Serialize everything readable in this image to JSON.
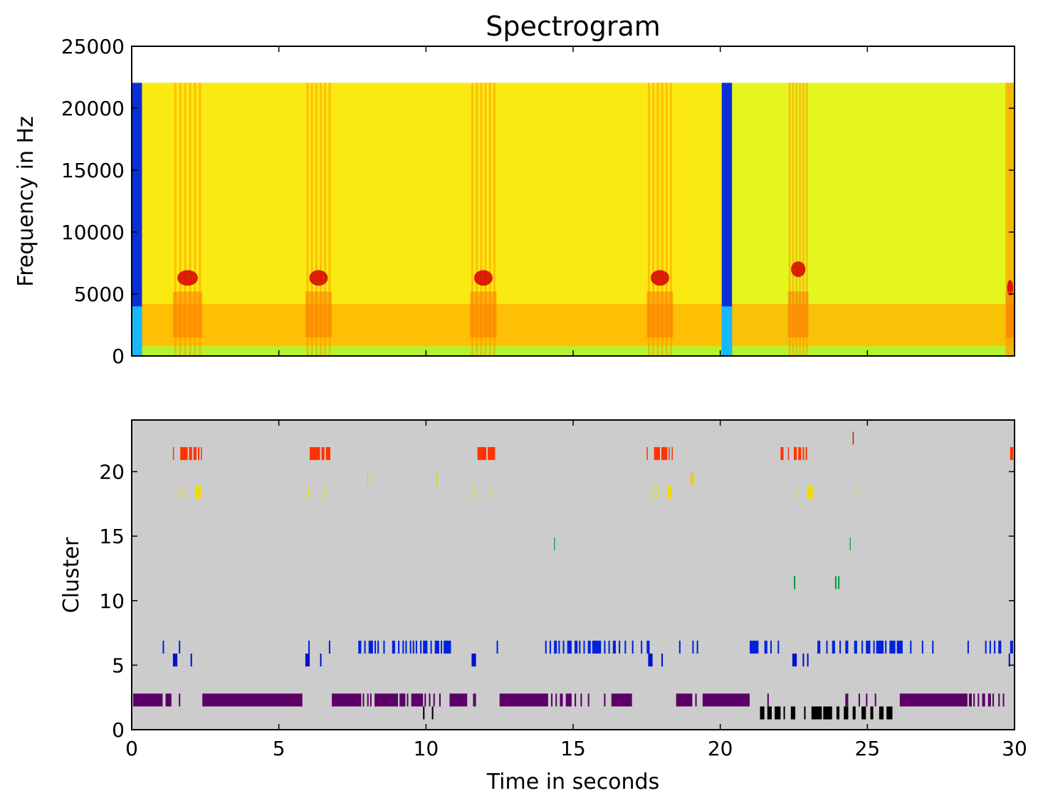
{
  "chart_data": [
    {
      "type": "heatmap",
      "title": "Spectrogram",
      "xlabel": "",
      "ylabel": "Frequency in Hz",
      "xlim": [
        0,
        30
      ],
      "ylim": [
        0,
        25000
      ],
      "xticks": [
        0,
        5,
        10,
        15,
        20,
        25,
        30
      ],
      "yticks": [
        0,
        5000,
        10000,
        15000,
        20000,
        25000
      ],
      "ytick_labels": [
        "0",
        "5000",
        "10000",
        "15000",
        "20000",
        "25000"
      ],
      "max_frequency": 22050,
      "colormap": "jet",
      "segment_boundaries": [
        0,
        20.05
      ],
      "segment_boundary_width": 0.35,
      "silence_color": "#0a2fd8",
      "edge_color": "#19c8ff",
      "background_colors": {
        "segment_1": "#fbea12",
        "segment_2": "#e4f61e",
        "low_band": "#b8f22c",
        "lower_noise": "#ffb000",
        "white_space": "#ffffff"
      },
      "calls": [
        {
          "start": 1.4,
          "end": 2.4,
          "peak_freq": 6300
        },
        {
          "start": 5.9,
          "end": 6.8,
          "peak_freq": 6300
        },
        {
          "start": 11.5,
          "end": 12.4,
          "peak_freq": 6300
        },
        {
          "start": 17.5,
          "end": 18.4,
          "peak_freq": 6300
        },
        {
          "start": 22.3,
          "end": 23.0,
          "peak_freq": 7000
        },
        {
          "start": 29.7,
          "end": 30.0,
          "peak_freq": 5500
        }
      ]
    },
    {
      "type": "scatter",
      "marker": "vertical-bar",
      "xlabel": "Time in seconds",
      "ylabel": "Cluster",
      "xlim": [
        0,
        30
      ],
      "ylim": [
        0,
        24
      ],
      "xticks": [
        0,
        5,
        10,
        15,
        20,
        25,
        30
      ],
      "xtick_labels": [
        "0",
        "5",
        "10",
        "15",
        "20",
        "25",
        "30"
      ],
      "yticks": [
        0,
        5,
        10,
        15,
        20
      ],
      "ytick_labels": [
        "0",
        "5",
        "10",
        "15",
        "20"
      ],
      "background": "#cccccc",
      "bar_half_height": 0.5,
      "series": [
        {
          "name": "cluster 1",
          "cluster": 1.3,
          "color": "#000000",
          "segments": [
            [
              9.9,
              9.95
            ],
            [
              10.2,
              10.25
            ],
            [
              21.35,
              21.5
            ],
            [
              21.6,
              21.75
            ],
            [
              21.85,
              22.05
            ],
            [
              22.15,
              22.2
            ],
            [
              22.4,
              22.55
            ],
            [
              22.85,
              22.9
            ],
            [
              23.1,
              23.45
            ],
            [
              23.5,
              23.8
            ],
            [
              23.95,
              24.05
            ],
            [
              24.2,
              24.35
            ],
            [
              24.5,
              24.6
            ],
            [
              24.8,
              24.95
            ],
            [
              25.1,
              25.2
            ],
            [
              25.4,
              25.55
            ],
            [
              25.65,
              25.85
            ]
          ]
        },
        {
          "name": "cluster 2",
          "cluster": 2.3,
          "color": "#5c0068",
          "segments": [
            [
              0.05,
              1.05
            ],
            [
              1.15,
              1.35
            ],
            [
              1.6,
              1.65
            ],
            [
              2.4,
              5.8
            ],
            [
              6.8,
              7.8
            ],
            [
              7.85,
              7.9
            ],
            [
              8.0,
              8.05
            ],
            [
              8.1,
              8.15
            ],
            [
              8.25,
              9.05
            ],
            [
              9.1,
              9.3
            ],
            [
              9.35,
              9.4
            ],
            [
              9.5,
              9.9
            ],
            [
              9.95,
              10.0
            ],
            [
              10.1,
              10.15
            ],
            [
              10.25,
              10.3
            ],
            [
              10.45,
              10.5
            ],
            [
              10.8,
              11.4
            ],
            [
              11.6,
              11.7
            ],
            [
              12.5,
              14.15
            ],
            [
              14.25,
              14.3
            ],
            [
              14.4,
              14.45
            ],
            [
              14.55,
              14.65
            ],
            [
              14.75,
              14.95
            ],
            [
              15.05,
              15.1
            ],
            [
              15.25,
              15.3
            ],
            [
              15.5,
              15.55
            ],
            [
              16.05,
              16.1
            ],
            [
              16.3,
              17.0
            ],
            [
              18.5,
              19.05
            ],
            [
              19.15,
              19.2
            ],
            [
              19.4,
              21.0
            ],
            [
              21.6,
              21.65
            ],
            [
              24.25,
              24.35
            ],
            [
              24.7,
              24.75
            ],
            [
              24.95,
              25.0
            ],
            [
              25.25,
              25.3
            ],
            [
              26.1,
              28.4
            ],
            [
              28.45,
              28.55
            ],
            [
              28.6,
              28.65
            ],
            [
              28.75,
              28.8
            ],
            [
              28.9,
              29.0
            ],
            [
              29.1,
              29.2
            ],
            [
              29.25,
              29.3
            ],
            [
              29.45,
              29.5
            ],
            [
              29.6,
              29.65
            ]
          ]
        },
        {
          "name": "cluster 5",
          "cluster": 5.4,
          "color": "#0011cc",
          "segments": [
            [
              1.4,
              1.55
            ],
            [
              2.0,
              2.05
            ],
            [
              5.9,
              6.05
            ],
            [
              6.4,
              6.45
            ],
            [
              11.55,
              11.7
            ],
            [
              17.55,
              17.7
            ],
            [
              18.0,
              18.05
            ],
            [
              22.45,
              22.6
            ],
            [
              22.8,
              22.85
            ],
            [
              22.95,
              23.0
            ],
            [
              29.8,
              29.85
            ]
          ]
        },
        {
          "name": "cluster 6",
          "cluster": 6.4,
          "color": "#0022dd",
          "segments": [
            [
              1.05,
              1.1
            ],
            [
              1.6,
              1.65
            ],
            [
              6.0,
              6.05
            ],
            [
              6.7,
              6.75
            ],
            [
              7.7,
              7.8
            ],
            [
              7.9,
              7.95
            ],
            [
              8.05,
              8.2
            ],
            [
              8.25,
              8.3
            ],
            [
              8.35,
              8.4
            ],
            [
              8.55,
              8.6
            ],
            [
              8.85,
              8.95
            ],
            [
              9.05,
              9.1
            ],
            [
              9.2,
              9.25
            ],
            [
              9.3,
              9.35
            ],
            [
              9.45,
              9.5
            ],
            [
              9.55,
              9.6
            ],
            [
              9.65,
              9.7
            ],
            [
              9.8,
              9.85
            ],
            [
              9.9,
              10.05
            ],
            [
              10.15,
              10.2
            ],
            [
              10.3,
              10.45
            ],
            [
              10.5,
              10.55
            ],
            [
              10.6,
              10.85
            ],
            [
              12.4,
              12.45
            ],
            [
              14.05,
              14.1
            ],
            [
              14.2,
              14.25
            ],
            [
              14.35,
              14.45
            ],
            [
              14.5,
              14.55
            ],
            [
              14.65,
              14.7
            ],
            [
              14.8,
              14.95
            ],
            [
              15.05,
              15.15
            ],
            [
              15.2,
              15.25
            ],
            [
              15.35,
              15.4
            ],
            [
              15.5,
              15.6
            ],
            [
              15.65,
              15.95
            ],
            [
              16.05,
              16.1
            ],
            [
              16.2,
              16.25
            ],
            [
              16.35,
              16.45
            ],
            [
              16.55,
              16.6
            ],
            [
              16.75,
              16.8
            ],
            [
              17.0,
              17.05
            ],
            [
              17.3,
              17.35
            ],
            [
              17.5,
              17.6
            ],
            [
              18.6,
              18.65
            ],
            [
              19.05,
              19.1
            ],
            [
              19.2,
              19.25
            ],
            [
              21.0,
              21.3
            ],
            [
              21.5,
              21.6
            ],
            [
              21.7,
              21.75
            ],
            [
              21.95,
              22.0
            ],
            [
              23.3,
              23.4
            ],
            [
              23.6,
              23.65
            ],
            [
              23.8,
              23.9
            ],
            [
              24.05,
              24.1
            ],
            [
              24.25,
              24.35
            ],
            [
              24.55,
              24.65
            ],
            [
              24.8,
              24.85
            ],
            [
              24.95,
              25.1
            ],
            [
              25.2,
              25.25
            ],
            [
              25.3,
              25.55
            ],
            [
              25.6,
              25.65
            ],
            [
              25.75,
              25.95
            ],
            [
              26.0,
              26.2
            ],
            [
              26.45,
              26.5
            ],
            [
              26.85,
              26.9
            ],
            [
              27.2,
              27.25
            ],
            [
              28.4,
              28.45
            ],
            [
              29.0,
              29.05
            ],
            [
              29.15,
              29.2
            ],
            [
              29.3,
              29.35
            ],
            [
              29.45,
              29.55
            ],
            [
              29.85,
              29.95
            ]
          ]
        },
        {
          "name": "cluster 11",
          "cluster": 11.4,
          "color": "#009944",
          "segments": [
            [
              22.5,
              22.55
            ],
            [
              23.9,
              23.95
            ],
            [
              24.0,
              24.05
            ]
          ]
        },
        {
          "name": "cluster 14",
          "cluster": 14.4,
          "color": "#22aa44",
          "segments": [
            [
              14.35,
              14.38
            ],
            [
              24.4,
              24.43
            ]
          ]
        },
        {
          "name": "cluster 18",
          "cluster": 18.4,
          "color": "#eedd00",
          "segments": [
            [
              1.6,
              1.63
            ],
            [
              1.8,
              1.83
            ],
            [
              2.15,
              2.35
            ],
            [
              6.0,
              6.03
            ],
            [
              6.55,
              6.6
            ],
            [
              11.65,
              11.68
            ],
            [
              12.2,
              12.23
            ],
            [
              17.7,
              17.73
            ],
            [
              17.9,
              17.93
            ],
            [
              18.2,
              18.35
            ],
            [
              22.6,
              22.63
            ],
            [
              22.95,
              23.15
            ],
            [
              24.65,
              24.68
            ]
          ]
        },
        {
          "name": "cluster 19",
          "cluster": 19.4,
          "color": "#eecc00",
          "segments": [
            [
              8.0,
              8.03
            ],
            [
              10.35,
              10.38
            ],
            [
              19.0,
              19.1
            ]
          ]
        },
        {
          "name": "cluster 21",
          "cluster": 21.4,
          "color": "#ff3300",
          "segments": [
            [
              1.4,
              1.43
            ],
            [
              1.65,
              1.9
            ],
            [
              1.95,
              2.05
            ],
            [
              2.1,
              2.2
            ],
            [
              2.25,
              2.3
            ],
            [
              2.35,
              2.38
            ],
            [
              6.05,
              6.4
            ],
            [
              6.45,
              6.55
            ],
            [
              6.6,
              6.75
            ],
            [
              11.75,
              12.05
            ],
            [
              12.1,
              12.35
            ],
            [
              17.5,
              17.53
            ],
            [
              17.75,
              17.95
            ],
            [
              18.0,
              18.2
            ],
            [
              18.25,
              18.28
            ],
            [
              18.35,
              18.38
            ],
            [
              22.05,
              22.15
            ],
            [
              22.3,
              22.33
            ],
            [
              22.5,
              22.6
            ],
            [
              22.65,
              22.75
            ],
            [
              22.8,
              22.85
            ],
            [
              22.9,
              22.95
            ],
            [
              29.85,
              29.95
            ],
            [
              29.97,
              30.0
            ]
          ]
        },
        {
          "name": "cluster 22",
          "cluster": 22.6,
          "color": "#cc2200",
          "segments": [
            [
              24.5,
              24.53
            ]
          ]
        }
      ]
    }
  ]
}
